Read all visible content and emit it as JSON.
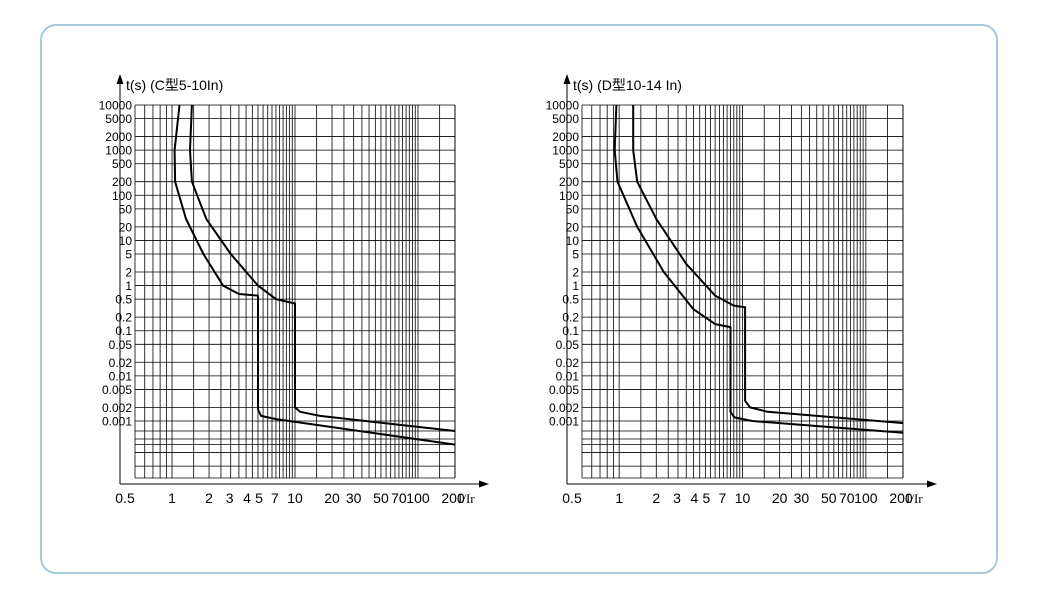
{
  "chart_data": [
    {
      "type": "line",
      "title": "t(s) (C型5-10In)",
      "xlabel": "I/Ir",
      "ylabel": "t(s)",
      "x_scale": "log",
      "y_scale": "log",
      "grid": true,
      "x_tick_labels": [
        "0.5",
        "1",
        "2",
        "3",
        "4",
        "5",
        "7",
        "10",
        "20",
        "30",
        "50",
        "70",
        "100",
        "200"
      ],
      "y_tick_labels": [
        "10000",
        "5000",
        "2000",
        "1000",
        "500",
        "200",
        "100",
        "50",
        "20",
        "10",
        "5",
        "2",
        "1",
        "0.5",
        "0.2",
        "0.1",
        "0.05",
        "0.02",
        "0.01",
        "0.005",
        "0.002",
        "0.001"
      ],
      "series": [
        {
          "points": [
            [
              1.15,
              10000
            ],
            [
              1.05,
              1000
            ],
            [
              1.06,
              200
            ],
            [
              1.3,
              30
            ],
            [
              1.8,
              5
            ],
            [
              2.6,
              1
            ],
            [
              3.5,
              0.65
            ],
            [
              5,
              0.6
            ],
            [
              5,
              0.0018
            ],
            [
              5.3,
              0.0013
            ],
            [
              7,
              0.0011
            ],
            [
              200,
              0.0003
            ]
          ]
        },
        {
          "points": [
            [
              1.45,
              10000
            ],
            [
              1.4,
              1000
            ],
            [
              1.45,
              200
            ],
            [
              1.9,
              30
            ],
            [
              3,
              5
            ],
            [
              5,
              1
            ],
            [
              7,
              0.5
            ],
            [
              10,
              0.4
            ],
            [
              10,
              0.002
            ],
            [
              11,
              0.0016
            ],
            [
              16,
              0.0013
            ],
            [
              200,
              0.0006
            ]
          ]
        }
      ]
    },
    {
      "type": "line",
      "title": "t(s) (D型10-14 In)",
      "xlabel": "I/Ir",
      "ylabel": "t(s)",
      "x_scale": "log",
      "y_scale": "log",
      "grid": true,
      "x_tick_labels": [
        "0.5",
        "1",
        "2",
        "3",
        "4",
        "5",
        "7",
        "10",
        "20",
        "30",
        "50",
        "70",
        "100",
        "200"
      ],
      "y_tick_labels": [
        "10000",
        "5000",
        "2000",
        "1000",
        "500",
        "200",
        "100",
        "50",
        "20",
        "10",
        "5",
        "2",
        "1",
        "0.5",
        "0.2",
        "0.1",
        "0.05",
        "0.02",
        "0.01",
        "0.005",
        "0.002",
        "0.001"
      ],
      "series": [
        {
          "points": [
            [
              0.95,
              10000
            ],
            [
              0.92,
              1000
            ],
            [
              0.97,
              200
            ],
            [
              1.4,
              20
            ],
            [
              2.3,
              2
            ],
            [
              4,
              0.3
            ],
            [
              6,
              0.14
            ],
            [
              8,
              0.12
            ],
            [
              8,
              0.0016
            ],
            [
              8.6,
              0.0012
            ],
            [
              12,
              0.001
            ],
            [
              200,
              0.00055
            ]
          ]
        },
        {
          "points": [
            [
              1.3,
              10000
            ],
            [
              1.3,
              1000
            ],
            [
              1.4,
              200
            ],
            [
              2,
              30
            ],
            [
              3.5,
              3
            ],
            [
              6,
              0.6
            ],
            [
              8.5,
              0.36
            ],
            [
              10.5,
              0.33
            ],
            [
              10.5,
              0.0028
            ],
            [
              11.5,
              0.002
            ],
            [
              16,
              0.0016
            ],
            [
              200,
              0.0009
            ]
          ]
        }
      ]
    }
  ]
}
